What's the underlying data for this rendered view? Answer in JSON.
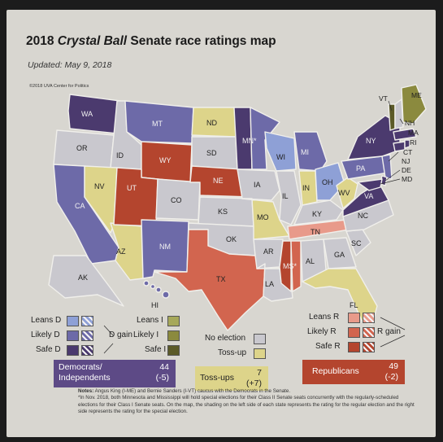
{
  "title_prefix": "2018 ",
  "title_italic": "Crystal Ball",
  "title_suffix": " Senate race ratings map",
  "updated": "Updated: May 9, 2018",
  "copyright": "©2018 UVA Center for Politics",
  "state_labels": {
    "WA": "WA",
    "OR": "OR",
    "CA": "CA",
    "ID": "ID",
    "NV": "NV",
    "AZ": "AZ",
    "MT": "MT",
    "WY": "WY",
    "UT": "UT",
    "CO": "CO",
    "NM": "NM",
    "ND": "ND",
    "SD": "SD",
    "NE": "NE",
    "KS": "KS",
    "OK": "OK",
    "TX": "TX",
    "MN": "MN*",
    "IA": "IA",
    "MO": "MO",
    "AR": "AR",
    "LA": "LA",
    "WI": "WI",
    "IL": "IL",
    "MS": "MS*",
    "MI": "MI",
    "IN": "IN",
    "KY": "KY",
    "TN": "TN",
    "AL": "AL",
    "OH": "OH",
    "GA": "GA",
    "FL": "FL",
    "SC": "SC",
    "NC": "NC",
    "VA": "VA",
    "WV": "WV",
    "PA": "PA",
    "NY": "NY",
    "VT": "VT",
    "NH": "NH",
    "MA": "MA",
    "RI": "RI",
    "CT": "CT",
    "NJ": "NJ",
    "DE": "DE",
    "MD": "MD",
    "ME": "ME",
    "AK": "AK",
    "HI": "HI"
  },
  "legend": {
    "leans_d": "Leans D",
    "likely_d": "Likely D",
    "safe_d": "Safe D",
    "d_gain": "D gain",
    "leans_i": "Leans I",
    "likely_i": "Likely I",
    "safe_i": "Safe I",
    "no_election": "No election",
    "toss_up": "Toss-up",
    "leans_r": "Leans R",
    "likely_r": "Likely R",
    "safe_r": "Safe R",
    "r_gain": "R gain"
  },
  "totals": {
    "dem_label_1": "Democrats/",
    "dem_label_2": "Independents",
    "dem_count": "44",
    "dem_change": "(-5)",
    "toss_label": "Toss-ups",
    "toss_count": "7",
    "toss_change": "(+7)",
    "rep_label": "Republicans",
    "rep_count": "49",
    "rep_change": "(-2)"
  },
  "notes": {
    "label": "Notes:",
    "line1": "Angus King (I-ME) and Bernie Sanders (I-VT) caucus with the Democrats in the Senate.",
    "line2": "*In Nov. 2018, both Minnesota and Mississippi will hold special elections for their Class II Senate seats concurrently with the regularly-scheduled elections for their Class I Senate seats. On the map, the shading on the left side of each state represents the rating for the regular election and the right side represents the rating for the special election."
  },
  "colors": {
    "safe_d": "#4b3a6e",
    "likely_d": "#6d6aa8",
    "leans_d": "#8ea0d6",
    "toss_up": "#ddd48a",
    "leans_r": "#e89a8a",
    "likely_r": "#d2654f",
    "safe_r": "#b4452e",
    "likely_i": "#8b8a3e",
    "safe_i": "#5b5a28",
    "no_election": "#c9c8ce"
  }
}
